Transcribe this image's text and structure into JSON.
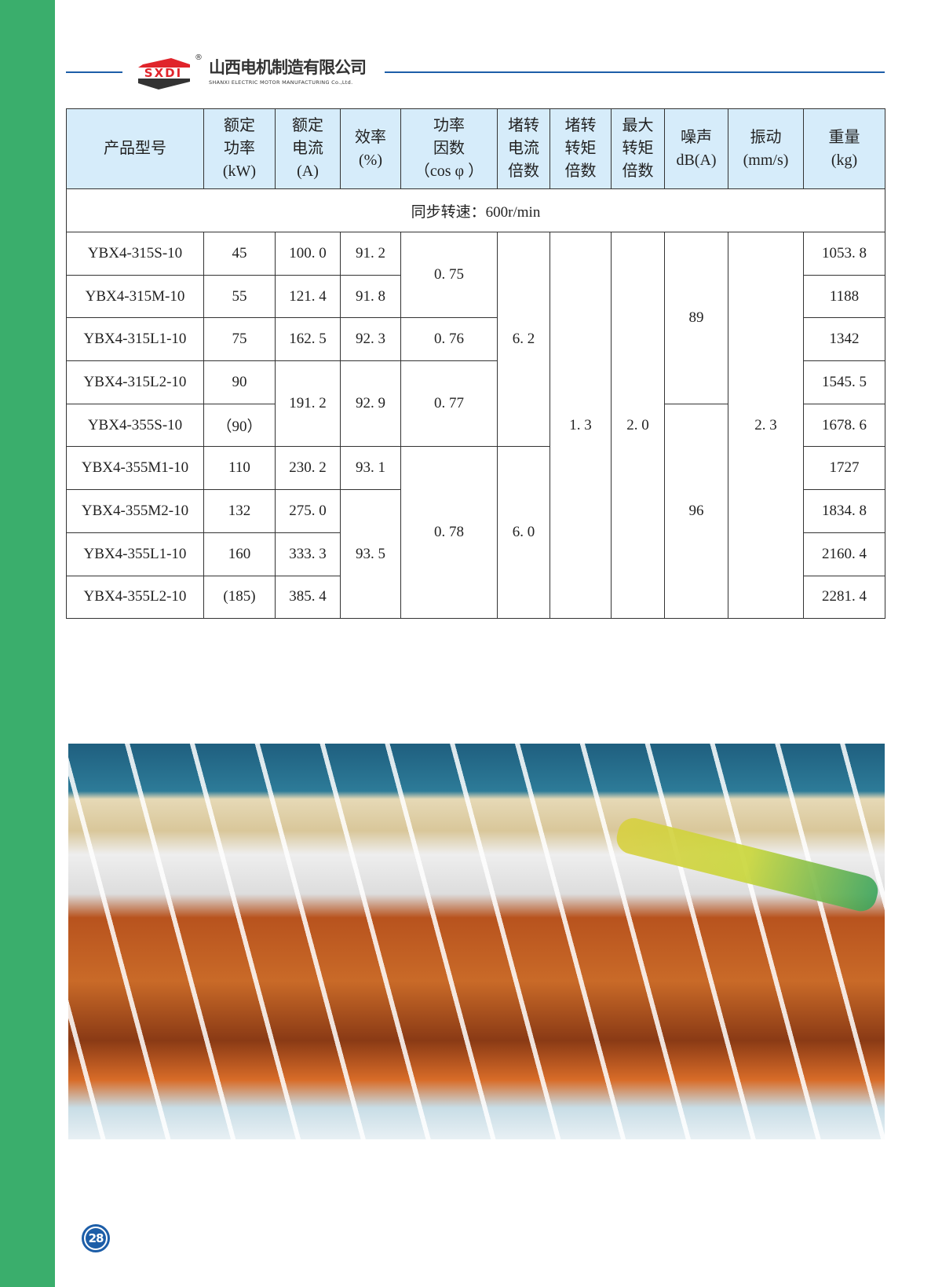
{
  "header": {
    "logo_text": "SXDI",
    "registered": "®",
    "company_cn": "山西电机制造有限公司",
    "company_en": "SHANXI ELECTRIC MOTOR MANUFACTURING Co.,Ltd."
  },
  "table": {
    "headers": [
      "产品型号",
      "额定\n功率\n(kW)",
      "额定\n电流\n(A)",
      "效率\n(%)",
      "功率\n因数\n（cos φ ）",
      "堵转\n电流\n倍数",
      "堵转\n转矩\n倍数",
      "最大\n转矩\n倍数",
      "噪声\ndB(A)",
      "振动\n(mm/s)",
      "重量\n(kg)"
    ],
    "speed": "同步转速：600r/min",
    "models": [
      "YBX4-315S-10",
      "YBX4-315M-10",
      "YBX4-315L1-10",
      "YBX4-315L2-10",
      "YBX4-355S-10",
      "YBX4-355M1-10",
      "YBX4-355M2-10",
      "YBX4-355L1-10",
      "YBX4-355L2-10"
    ],
    "power": [
      "45",
      "55",
      "75",
      "90",
      "（90）",
      "110",
      "132",
      "160",
      "(185)"
    ],
    "current": [
      "100. 0",
      "121. 4",
      "162. 5",
      "191. 2",
      "230. 2",
      "275. 0",
      "333. 3",
      "385. 4"
    ],
    "efficiency": [
      "91. 2",
      "91. 8",
      "92. 3",
      "92. 9",
      "93. 1",
      "93. 5"
    ],
    "power_factor": [
      "0. 75",
      "0. 76",
      "0. 77",
      "0. 78"
    ],
    "locked_current": [
      "6. 2",
      "6. 0"
    ],
    "locked_torque": "1. 3",
    "max_torque": "2. 0",
    "noise": [
      "89",
      "96"
    ],
    "vibration": "2. 3",
    "weight": [
      "1053. 8",
      "1188",
      "1342",
      "1545. 5",
      "1678. 6",
      "1727",
      "1834. 8",
      "2160. 4",
      "2281. 4"
    ]
  },
  "page_number": "28",
  "colors": {
    "green": "#3aae6c",
    "blue": "#1d5ea8",
    "header_bg": "#d6ecfa",
    "logo_red": "#e0242b"
  }
}
